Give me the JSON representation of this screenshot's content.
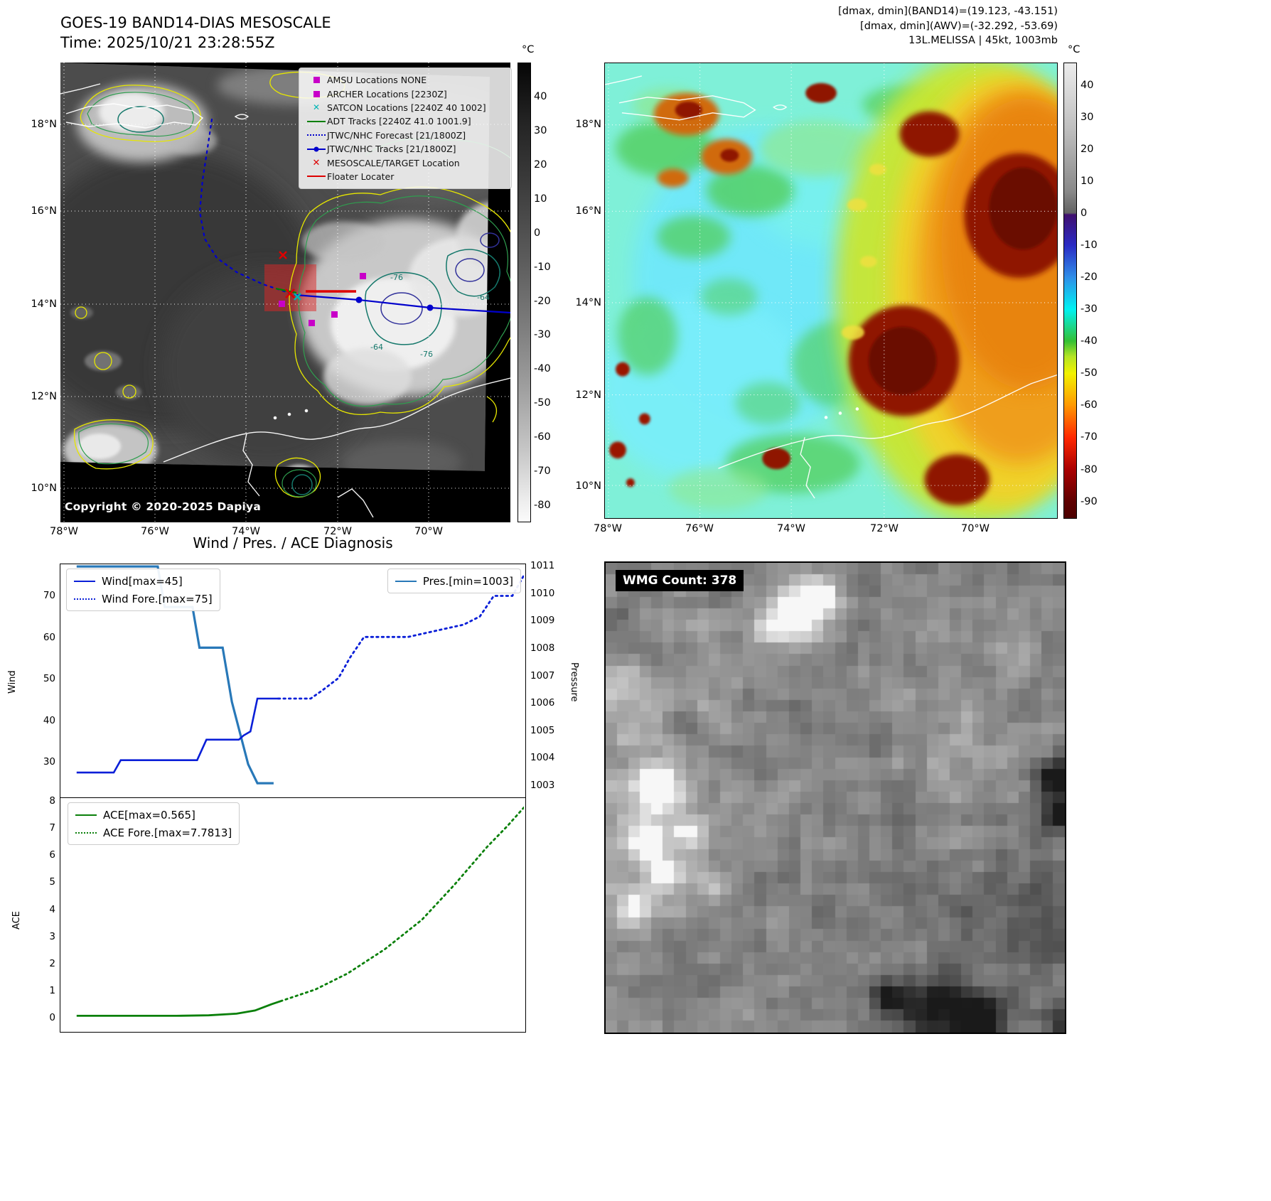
{
  "colors": {
    "amsu_archer_magenta": "#c800c8",
    "satcon_cyan": "#00b5b5",
    "adt_green": "#008000",
    "track_blue": "#0000cc",
    "target_red": "#dd0000",
    "wind_line": "#0a1fd8",
    "pressure_line": "#2878b8",
    "ace_line": "#0a800a"
  },
  "panel1": {
    "title": "GOES-19 BAND14-DIAS MESOSCALE",
    "subtitle": "Time: 2025/10/21 23:28:55Z",
    "copyright": "Copyright © 2020-2025 Dapiya",
    "legend": [
      {
        "label": "AMSU Locations NONE"
      },
      {
        "label": "ARCHER Locations [2230Z]"
      },
      {
        "label": "SATCON Locations [2240Z 40 1002]"
      },
      {
        "label": "ADT Tracks [2240Z 41.0 1001.9]"
      },
      {
        "label": "JTWC/NHC Forecast [21/1800Z]"
      },
      {
        "label": "JTWC/NHC Tracks [21/1800Z]"
      },
      {
        "label": "MESOSCALE/TARGET Location"
      },
      {
        "label": "Floater Locater"
      }
    ],
    "lat_ticks": [
      "18°N",
      "16°N",
      "14°N",
      "12°N",
      "10°N"
    ],
    "lon_ticks": [
      "78°W",
      "76°W",
      "74°W",
      "72°W",
      "70°W"
    ],
    "colorbar_unit": "°C",
    "colorbar_ticks": [
      "40",
      "30",
      "20",
      "10",
      "0",
      "-10",
      "-20",
      "-30",
      "-40",
      "-50",
      "-60",
      "-70",
      "-80"
    ],
    "contour_labels": [
      "-64",
      "-76",
      "-64",
      "-76"
    ]
  },
  "panel2": {
    "header_lines": [
      "[dmax, dmin](BAND14)=(19.123, -43.151)",
      "[dmax, dmin](AWV)=(-32.292, -53.69)",
      "13L.MELISSA | 45kt, 1003mb"
    ],
    "lat_ticks": [
      "18°N",
      "16°N",
      "14°N",
      "12°N",
      "10°N"
    ],
    "lon_ticks": [
      "78°W",
      "76°W",
      "74°W",
      "72°W",
      "70°W"
    ],
    "colorbar_unit": "°C",
    "colorbar_ticks": [
      "40",
      "30",
      "20",
      "10",
      "0",
      "-10",
      "-20",
      "-30",
      "-40",
      "-50",
      "-60",
      "-70",
      "-80",
      "-90"
    ]
  },
  "panel4": {
    "label": "WMG Count: 378"
  },
  "chart_data": [
    {
      "type": "line",
      "title": "Wind / Pres. / ACE Diagnosis",
      "ylabel_left": "Wind",
      "ylabel_right": "Pressure",
      "y_ticks_left": [
        70,
        60,
        50,
        40,
        30
      ],
      "y_ticks_right": [
        1011,
        1010,
        1009,
        1008,
        1007,
        1006,
        1005,
        1004,
        1003
      ],
      "ylim_left": [
        21.3,
        77.7
      ],
      "ylim_right": [
        1002.53,
        1011.08
      ],
      "xlim": [
        0,
        1
      ],
      "grid": false,
      "legend_position": "upper-left-and-upper-right",
      "series": [
        {
          "name": "Pres.[min=1003]",
          "axis": "right",
          "style": "solid",
          "color": "#2878b8",
          "width": 3.2,
          "x": [
            0.035,
            0.21,
            0.225,
            0.285,
            0.3,
            0.35,
            0.37,
            0.405,
            0.425,
            0.46
          ],
          "y": [
            1011,
            1011,
            1009.5,
            1009.5,
            1008,
            1008,
            1006,
            1003.7,
            1003,
            1003
          ]
        },
        {
          "name": "Wind[max=45]",
          "axis": "left",
          "style": "solid",
          "color": "#0a1fd8",
          "width": 2.6,
          "x": [
            0.035,
            0.115,
            0.13,
            0.295,
            0.315,
            0.385,
            0.395,
            0.41,
            0.425,
            0.47
          ],
          "y": [
            27,
            27,
            30,
            30,
            35,
            35,
            36,
            37,
            45,
            45
          ]
        },
        {
          "name": "Wind Fore.[max=75]",
          "axis": "left",
          "style": "dotted",
          "color": "#0a1fd8",
          "width": 2.8,
          "x": [
            0.47,
            0.54,
            0.565,
            0.6,
            0.625,
            0.655,
            0.75,
            0.79,
            0.83,
            0.87,
            0.905,
            0.935,
            0.975,
            1.0
          ],
          "y": [
            45,
            45,
            47,
            50,
            55,
            60,
            60,
            61,
            62,
            63,
            65,
            70,
            70,
            75
          ]
        }
      ]
    },
    {
      "type": "line",
      "ylabel_left": "ACE",
      "y_ticks_left": [
        8,
        7,
        6,
        5,
        4,
        3,
        2,
        1,
        0
      ],
      "ylim_left": [
        -0.525,
        8.131
      ],
      "xlim": [
        0,
        1
      ],
      "grid": false,
      "legend_position": "upper-left",
      "series": [
        {
          "name": "ACE[max=0.565]",
          "axis": "left",
          "style": "solid",
          "color": "#0a800a",
          "width": 2.8,
          "x": [
            0.035,
            0.25,
            0.32,
            0.38,
            0.42,
            0.455,
            0.475
          ],
          "y": [
            0.02,
            0.02,
            0.04,
            0.1,
            0.22,
            0.45,
            0.565
          ]
        },
        {
          "name": "ACE Fore.[max=7.7813]",
          "axis": "left",
          "style": "dotted",
          "color": "#0a800a",
          "width": 2.8,
          "x": [
            0.475,
            0.55,
            0.62,
            0.7,
            0.78,
            0.85,
            0.92,
            0.965,
            1.0
          ],
          "y": [
            0.565,
            1.0,
            1.6,
            2.5,
            3.6,
            4.9,
            6.3,
            7.1,
            7.78
          ]
        }
      ]
    }
  ]
}
